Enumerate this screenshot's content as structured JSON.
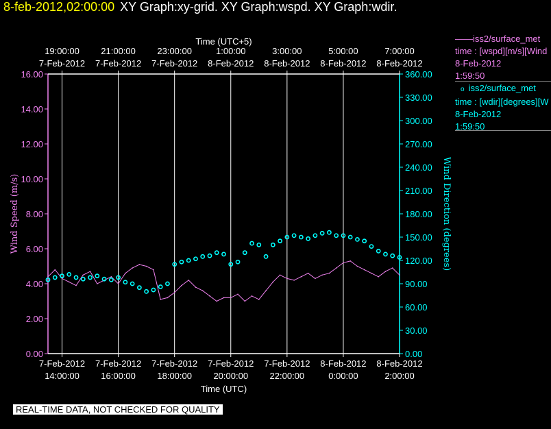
{
  "header": {
    "timestamp": "8-feb-2012,02:00:00",
    "graphs": "XY Graph:xy-grid.  XY Graph:wspd.  XY Graph:wdir."
  },
  "legend": {
    "series1": {
      "marker": "——",
      "name": "iss2/surface_met",
      "desc": "time : [wspd][m/s][Wind",
      "date": "8-Feb-2012",
      "time": "1:59:50"
    },
    "series2": {
      "marker": "o",
      "name": "iss2/surface_met",
      "desc": "time : [wdir][degrees][W",
      "date": "8-Feb-2012",
      "time": "1:59:50"
    }
  },
  "disclaimer": "REAL-TIME DATA, NOT CHECKED FOR QUALITY",
  "colors": {
    "wspd": "#ee82ee",
    "wdir": "#00ffff",
    "grid": "#ffffff",
    "timestamp": "#ffff00"
  },
  "chart_data": {
    "type": "line",
    "xlabel_bottom": "Time (UTC)",
    "xlabel_top": "Time (UTC+5)",
    "ylabel_left": "Wind Speed (m/s)",
    "ylabel_right": "Wind Direction (degrees)",
    "xlim_hours": [
      13.5,
      26.0
    ],
    "ylim_left": [
      0,
      16
    ],
    "ylim_right": [
      0,
      360
    ],
    "grid": "vertical lines at x ticks",
    "bottom_ticks": [
      {
        "t": 14,
        "l1": "7-Feb-2012",
        "l2": "14:00:00"
      },
      {
        "t": 16,
        "l1": "7-Feb-2012",
        "l2": "16:00:00"
      },
      {
        "t": 18,
        "l1": "7-Feb-2012",
        "l2": "18:00:00"
      },
      {
        "t": 20,
        "l1": "7-Feb-2012",
        "l2": "20:00:00"
      },
      {
        "t": 22,
        "l1": "7-Feb-2012",
        "l2": "22:00:00"
      },
      {
        "t": 24,
        "l1": "8-Feb-2012",
        "l2": "0:00:00"
      },
      {
        "t": 26,
        "l1": "8-Feb-2012",
        "l2": "2:00:00"
      }
    ],
    "top_ticks": [
      {
        "t": 14,
        "l1": "19:00:00",
        "l2": "7-Feb-2012"
      },
      {
        "t": 16,
        "l1": "21:00:00",
        "l2": "7-Feb-2012"
      },
      {
        "t": 18,
        "l1": "23:00:00",
        "l2": "7-Feb-2012"
      },
      {
        "t": 20,
        "l1": "1:00:00",
        "l2": "8-Feb-2012"
      },
      {
        "t": 22,
        "l1": "3:00:00",
        "l2": "8-Feb-2012"
      },
      {
        "t": 24,
        "l1": "5:00:00",
        "l2": "8-Feb-2012"
      },
      {
        "t": 26,
        "l1": "7:00:00",
        "l2": "8-Feb-2012"
      }
    ],
    "left_ticks": [
      "0.00",
      "2.00",
      "4.00",
      "6.00",
      "8.00",
      "10.00",
      "12.00",
      "14.00",
      "16.00"
    ],
    "right_ticks": [
      "0.00",
      "30.00",
      "60.00",
      "90.00",
      "120.00",
      "150.00",
      "180.00",
      "210.00",
      "240.00",
      "270.00",
      "300.00",
      "330.00",
      "360.00"
    ],
    "series": [
      {
        "name": "iss2/surface_met wspd",
        "axis": "left",
        "style": "line",
        "x_hours": [
          13.5,
          13.75,
          14.0,
          14.25,
          14.5,
          14.75,
          15.0,
          15.25,
          15.5,
          15.75,
          16.0,
          16.25,
          16.5,
          16.75,
          17.0,
          17.25,
          17.5,
          17.75,
          18.0,
          18.25,
          18.5,
          18.75,
          19.0,
          19.25,
          19.5,
          19.75,
          20.0,
          20.25,
          20.5,
          20.75,
          21.0,
          21.25,
          21.5,
          21.75,
          22.0,
          22.25,
          22.5,
          22.75,
          23.0,
          23.25,
          23.5,
          23.75,
          24.0,
          24.25,
          24.5,
          24.75,
          25.0,
          25.25,
          25.5,
          25.75,
          26.0
        ],
        "values": [
          4.4,
          4.8,
          4.3,
          4.1,
          3.9,
          4.5,
          4.7,
          4.0,
          4.2,
          4.4,
          4.0,
          4.6,
          4.9,
          5.1,
          5.0,
          4.8,
          3.1,
          3.2,
          3.5,
          3.9,
          4.2,
          3.8,
          3.6,
          3.3,
          3.0,
          3.2,
          3.2,
          3.4,
          3.0,
          3.3,
          3.1,
          3.6,
          4.1,
          4.5,
          4.3,
          4.2,
          4.4,
          4.6,
          4.3,
          4.5,
          4.6,
          4.9,
          5.2,
          5.3,
          5.0,
          4.8,
          4.6,
          4.4,
          4.7,
          4.9,
          4.5
        ]
      },
      {
        "name": "iss2/surface_met wdir",
        "axis": "right",
        "style": "circles",
        "x_hours": [
          13.5,
          13.75,
          14.0,
          14.25,
          14.5,
          14.75,
          15.0,
          15.25,
          15.5,
          15.75,
          16.0,
          16.25,
          16.5,
          16.75,
          17.0,
          17.25,
          17.5,
          17.75,
          18.0,
          18.25,
          18.5,
          18.75,
          19.0,
          19.25,
          19.5,
          19.75,
          20.0,
          20.25,
          20.5,
          20.75,
          21.0,
          21.25,
          21.5,
          21.75,
          22.0,
          22.25,
          22.5,
          22.75,
          23.0,
          23.25,
          23.5,
          23.75,
          24.0,
          24.25,
          24.5,
          24.75,
          25.0,
          25.25,
          25.5,
          25.75,
          26.0
        ],
        "values": [
          95,
          98,
          100,
          102,
          98,
          96,
          98,
          100,
          96,
          95,
          98,
          92,
          90,
          85,
          80,
          82,
          86,
          90,
          115,
          118,
          120,
          122,
          125,
          126,
          130,
          128,
          115,
          118,
          130,
          142,
          140,
          125,
          140,
          145,
          150,
          152,
          150,
          148,
          152,
          155,
          156,
          152,
          152,
          150,
          147,
          145,
          138,
          132,
          128,
          126,
          124
        ]
      }
    ]
  }
}
